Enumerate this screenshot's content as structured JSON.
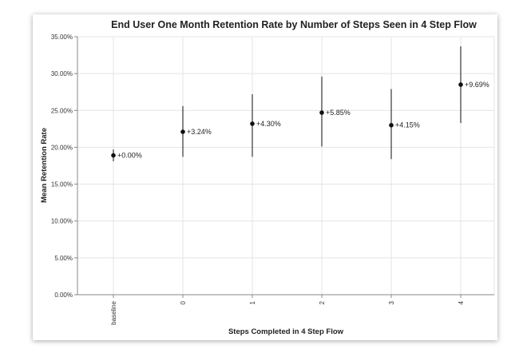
{
  "chart_data": {
    "type": "scatter",
    "title": "End User One Month Retention Rate by Number of Steps Seen in 4 Step Flow",
    "xlabel": "Steps Completed in 4 Step Flow",
    "ylabel": "Mean Retention Rate",
    "ylim": [
      0,
      0.35
    ],
    "grid": true,
    "y_ticks": [
      "0.00%",
      "5.00%",
      "10.00%",
      "15.00%",
      "20.00%",
      "25.00%",
      "30.00%",
      "35.00%"
    ],
    "categories": [
      "baseline",
      "0",
      "1",
      "2",
      "3",
      "4"
    ],
    "values": [
      0.189,
      0.221,
      0.232,
      0.247,
      0.23,
      0.285
    ],
    "error_low": [
      0.181,
      0.187,
      0.187,
      0.201,
      0.184,
      0.233
    ],
    "error_high": [
      0.197,
      0.256,
      0.272,
      0.296,
      0.279,
      0.337
    ],
    "labels": [
      "+0.00%",
      "+3.24%",
      "+4.30%",
      "+5.85%",
      "+4.15%",
      "+9.69%"
    ]
  }
}
